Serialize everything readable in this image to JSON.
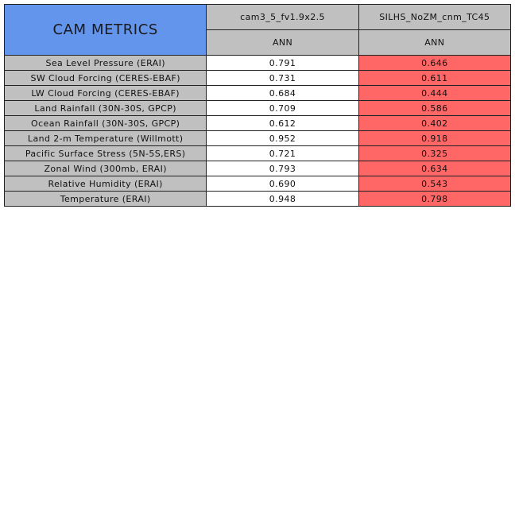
{
  "chart_data": {
    "type": "table",
    "title": "CAM METRICS",
    "columns": [
      {
        "name": "cam3_5_fv1.9x2.5",
        "season": "ANN"
      },
      {
        "name": "SILHS_NoZM_cnm_TC45",
        "season": "ANN"
      }
    ],
    "rows": [
      {
        "label": "Sea Level Pressure (ERAI)",
        "values": [
          "0.791",
          "0.646"
        ]
      },
      {
        "label": "SW Cloud Forcing (CERES-EBAF)",
        "values": [
          "0.731",
          "0.611"
        ]
      },
      {
        "label": "LW Cloud Forcing (CERES-EBAF)",
        "values": [
          "0.684",
          "0.444"
        ]
      },
      {
        "label": "Land Rainfall (30N-30S, GPCP)",
        "values": [
          "0.709",
          "0.586"
        ]
      },
      {
        "label": "Ocean Rainfall (30N-30S, GPCP)",
        "values": [
          "0.612",
          "0.402"
        ]
      },
      {
        "label": "Land 2-m Temperature (Willmott)",
        "values": [
          "0.952",
          "0.918"
        ]
      },
      {
        "label": "Pacific Surface Stress (5N-5S,ERS)",
        "values": [
          "0.721",
          "0.325"
        ]
      },
      {
        "label": "Zonal Wind (300mb, ERAI)",
        "values": [
          "0.793",
          "0.634"
        ]
      },
      {
        "label": "Relative Humidity (ERAI)",
        "values": [
          "0.690",
          "0.543"
        ]
      },
      {
        "label": "Temperature (ERAI)",
        "values": [
          "0.948",
          "0.798"
        ]
      }
    ],
    "cell_colors": [
      "#ffffff",
      "#ff6666"
    ],
    "title_color": "#6495ED",
    "header_color": "#c0c0c0"
  }
}
